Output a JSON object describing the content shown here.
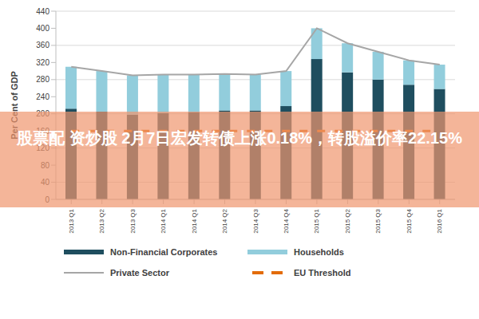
{
  "chart_data": {
    "type": "bar",
    "stacked": true,
    "y_label": "Per Cent of GDP",
    "annotation": "股票配 资炒股 2月7日宏发转债上涨0.18%，转股溢价率22.15%",
    "categories": [
      "2013 Q1",
      "2013 Q2",
      "2013 Q3",
      "2014 Q1",
      "2014 Q1",
      "2014 Q2",
      "2014 Q3",
      "2014 Q4",
      "2015 Q1",
      "2015 Q2",
      "2015 Q3",
      "2015 Q4",
      "2016 Q1"
    ],
    "series": [
      {
        "name": "Non-Financial Corporates",
        "type": "bar",
        "color": "#1f4e5f",
        "values": [
          212,
          205,
          198,
          202,
          204,
          208,
          208,
          218,
          328,
          297,
          280,
          268,
          258
        ]
      },
      {
        "name": "Households",
        "type": "bar",
        "color": "#92cddc",
        "values": [
          98,
          95,
          92,
          90,
          88,
          85,
          84,
          82,
          72,
          68,
          65,
          57,
          57
        ]
      },
      {
        "name": "Private Sector",
        "type": "line",
        "color": "#a6a6a6",
        "line_style": "solid",
        "values": [
          310,
          300,
          290,
          292,
          292,
          293,
          292,
          300,
          400,
          365,
          345,
          325,
          315
        ]
      },
      {
        "name": "EU Threshold",
        "type": "line",
        "color": "#e36c09",
        "line_style": "dashed",
        "values": [
          160,
          160,
          160,
          160,
          160,
          160,
          160,
          160,
          160,
          160,
          160,
          160,
          160
        ]
      }
    ],
    "ylim": [
      0,
      440
    ],
    "yticks": [
      0,
      40,
      80,
      120,
      160,
      200,
      240,
      280,
      320,
      360,
      400,
      440
    ],
    "grid": true,
    "legend": "bottom"
  }
}
